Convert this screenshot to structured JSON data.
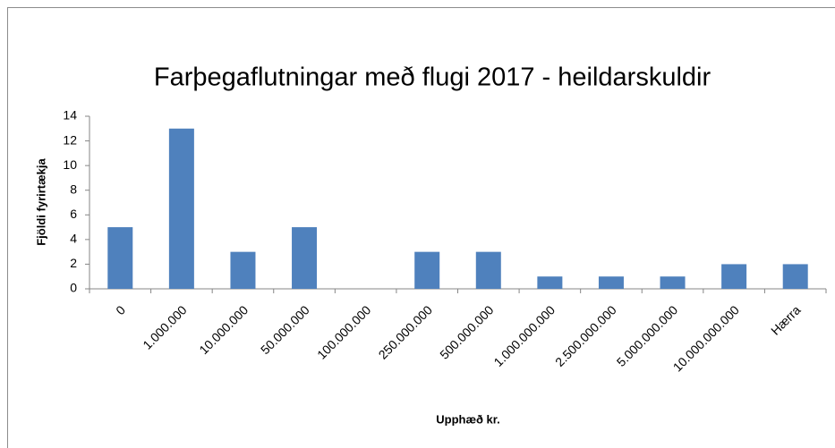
{
  "chart_data": {
    "type": "bar",
    "title": "Farþegaflutningar með flugi 2017 - heildarskuldir",
    "x_label": "Upphæð kr.",
    "y_label": "Fjöldi fyrirtækja",
    "categories": [
      "0",
      "1.000.000",
      "10.000.000",
      "50.000.000",
      "100.000.000",
      "250.000.000",
      "500.000.000",
      "1.000.000.000",
      "2.500.000.000",
      "5.000.000.000",
      "10.000.000.000",
      "Hærra"
    ],
    "values": [
      5,
      13,
      3,
      5,
      0,
      3,
      3,
      1,
      1,
      1,
      2,
      2
    ],
    "color": "#4f81bd",
    "ylim": [
      0,
      14
    ],
    "yticks": [
      0,
      2,
      4,
      6,
      8,
      10,
      12,
      14
    ],
    "grid": false
  }
}
